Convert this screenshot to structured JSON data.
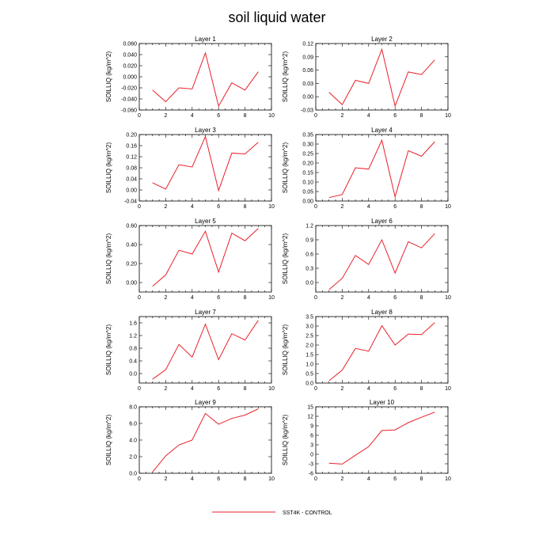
{
  "figure": {
    "title": "soil liquid water"
  },
  "legend": {
    "label": "SST4K - CONTROL",
    "color": "#e8202a"
  },
  "chart_data": [
    {
      "type": "line",
      "title": "Layer 1",
      "ylabel": "SOILLIQ  (kg/m^2)",
      "xlim": [
        0,
        10
      ],
      "xticks": [
        "0",
        "2",
        "4",
        "6",
        "8",
        "10"
      ],
      "ylim": [
        -0.06,
        0.06
      ],
      "yticks": [
        "-0.060",
        "-0.040",
        "-0.020",
        "0.000",
        "0.020",
        "0.040",
        "0.060"
      ],
      "x": [
        1,
        2,
        3,
        4,
        5,
        6,
        7,
        8,
        9
      ],
      "series": [
        {
          "name": "SST4K - CONTROL",
          "values": [
            -0.024,
            -0.045,
            -0.02,
            -0.022,
            0.043,
            -0.053,
            -0.011,
            -0.024,
            0.009
          ]
        }
      ]
    },
    {
      "type": "line",
      "title": "Layer 2",
      "ylabel": "SOILLIQ  (kg/m^2)",
      "xlim": [
        0,
        10
      ],
      "xticks": [
        "0",
        "2",
        "4",
        "6",
        "8",
        "10"
      ],
      "ylim": [
        -0.03,
        0.12
      ],
      "yticks": [
        "-0.03",
        "0.00",
        "0.03",
        "0.06",
        "0.09",
        "0.12"
      ],
      "x": [
        1,
        2,
        3,
        4,
        5,
        6,
        7,
        8,
        9
      ],
      "series": [
        {
          "name": "SST4K - CONTROL",
          "values": [
            0.01,
            -0.018,
            0.037,
            0.03,
            0.107,
            -0.021,
            0.056,
            0.05,
            0.083
          ]
        }
      ]
    },
    {
      "type": "line",
      "title": "Layer 3",
      "ylabel": "SOILLIQ  (kg/m^2)",
      "xlim": [
        0,
        10
      ],
      "xticks": [
        "0",
        "2",
        "4",
        "6",
        "8",
        "10"
      ],
      "ylim": [
        -0.04,
        0.2
      ],
      "yticks": [
        "-0.04",
        "0.00",
        "0.04",
        "0.08",
        "0.12",
        "0.16",
        "0.20"
      ],
      "x": [
        1,
        2,
        3,
        4,
        5,
        6,
        7,
        8,
        9
      ],
      "series": [
        {
          "name": "SST4K - CONTROL",
          "values": [
            0.026,
            0.003,
            0.091,
            0.083,
            0.193,
            -0.002,
            0.133,
            0.13,
            0.172
          ]
        }
      ]
    },
    {
      "type": "line",
      "title": "Layer 4",
      "ylabel": "SOILLIQ  (kg/m^2)",
      "xlim": [
        0,
        10
      ],
      "xticks": [
        "0",
        "2",
        "4",
        "6",
        "8",
        "10"
      ],
      "ylim": [
        0,
        0.35
      ],
      "yticks": [
        "0.00",
        "0.05",
        "0.10",
        "0.15",
        "0.20",
        "0.25",
        "0.30",
        "0.35"
      ],
      "x": [
        1,
        2,
        3,
        4,
        5,
        6,
        7,
        8,
        9
      ],
      "series": [
        {
          "name": "SST4K - CONTROL",
          "values": [
            0.018,
            0.034,
            0.175,
            0.168,
            0.32,
            0.022,
            0.265,
            0.236,
            0.312
          ]
        }
      ]
    },
    {
      "type": "line",
      "title": "Layer 5",
      "ylabel": "SOILLIQ  (kg/m^2)",
      "xlim": [
        0,
        10
      ],
      "xticks": [
        "0",
        "2",
        "4",
        "6",
        "8",
        "10"
      ],
      "ylim": [
        -0.1,
        0.6
      ],
      "yticks": [
        "0.00",
        "0.20",
        "0.40",
        "0.60"
      ],
      "x": [
        1,
        2,
        3,
        4,
        5,
        6,
        7,
        8,
        9
      ],
      "series": [
        {
          "name": "SST4K - CONTROL",
          "values": [
            -0.04,
            0.08,
            0.34,
            0.3,
            0.54,
            0.11,
            0.52,
            0.44,
            0.57
          ]
        }
      ]
    },
    {
      "type": "line",
      "title": "Layer 6",
      "ylabel": "SOILLIQ  (kg/m^2)",
      "xlim": [
        0,
        10
      ],
      "xticks": [
        "0",
        "2",
        "4",
        "6",
        "8",
        "10"
      ],
      "ylim": [
        -0.2,
        1.2
      ],
      "yticks": [
        "0.0",
        "0.3",
        "0.6",
        "0.9",
        "1.2"
      ],
      "x": [
        1,
        2,
        3,
        4,
        5,
        6,
        7,
        8,
        9
      ],
      "series": [
        {
          "name": "SST4K - CONTROL",
          "values": [
            -0.15,
            0.09,
            0.57,
            0.38,
            0.9,
            0.2,
            0.86,
            0.73,
            1.03
          ]
        }
      ]
    },
    {
      "type": "line",
      "title": "Layer 7",
      "ylabel": "SOILLIQ  (kg/m^2)",
      "xlim": [
        0,
        10
      ],
      "xticks": [
        "0",
        "2",
        "4",
        "6",
        "8",
        "10"
      ],
      "ylim": [
        -0.3,
        1.8
      ],
      "yticks": [
        "0.0",
        "0.4",
        "0.8",
        "1.2",
        "1.6"
      ],
      "x": [
        1,
        2,
        3,
        4,
        5,
        6,
        7,
        8,
        9
      ],
      "series": [
        {
          "name": "SST4K - CONTROL",
          "values": [
            -0.18,
            0.12,
            0.92,
            0.52,
            1.56,
            0.44,
            1.26,
            1.06,
            1.68
          ]
        }
      ]
    },
    {
      "type": "line",
      "title": "Layer 8",
      "ylabel": "SOILLIQ  (kg/m^2)",
      "xlim": [
        0,
        10
      ],
      "xticks": [
        "0",
        "2",
        "4",
        "6",
        "8",
        "10"
      ],
      "ylim": [
        0,
        3.5
      ],
      "yticks": [
        "0.0",
        "0.5",
        "1.0",
        "1.5",
        "2.0",
        "2.5",
        "3.0",
        "3.5"
      ],
      "x": [
        1,
        2,
        3,
        4,
        5,
        6,
        7,
        8,
        9
      ],
      "series": [
        {
          "name": "SST4K - CONTROL",
          "values": [
            0.12,
            0.68,
            1.82,
            1.68,
            3.02,
            2.0,
            2.58,
            2.55,
            3.18
          ]
        }
      ]
    },
    {
      "type": "line",
      "title": "Layer 9",
      "ylabel": "SOILLIQ  (kg/m^2)",
      "xlim": [
        0,
        10
      ],
      "xticks": [
        "0",
        "2",
        "4",
        "6",
        "8",
        "10"
      ],
      "ylim": [
        0,
        8
      ],
      "yticks": [
        "0.0",
        "2.0",
        "4.0",
        "6.0",
        "8.0"
      ],
      "x": [
        1,
        2,
        3,
        4,
        5,
        6,
        7,
        8,
        9
      ],
      "series": [
        {
          "name": "SST4K - CONTROL",
          "values": [
            0.15,
            2.1,
            3.4,
            4.0,
            7.2,
            5.9,
            6.6,
            7.0,
            7.75
          ]
        }
      ]
    },
    {
      "type": "line",
      "title": "Layer 10",
      "ylabel": "SOILLIQ  (kg/m^2)",
      "xlim": [
        0,
        10
      ],
      "xticks": [
        "0",
        "2",
        "4",
        "6",
        "8",
        "10"
      ],
      "ylim": [
        -6,
        15
      ],
      "yticks": [
        "-6",
        "-3",
        "0",
        "3",
        "6",
        "9",
        "12",
        "15"
      ],
      "x": [
        1,
        2,
        3,
        4,
        5,
        6,
        7,
        8,
        9
      ],
      "series": [
        {
          "name": "SST4K - CONTROL",
          "values": [
            -2.8,
            -3.1,
            -0.3,
            2.4,
            7.5,
            7.7,
            10.0,
            11.7,
            13.3
          ]
        }
      ]
    }
  ]
}
